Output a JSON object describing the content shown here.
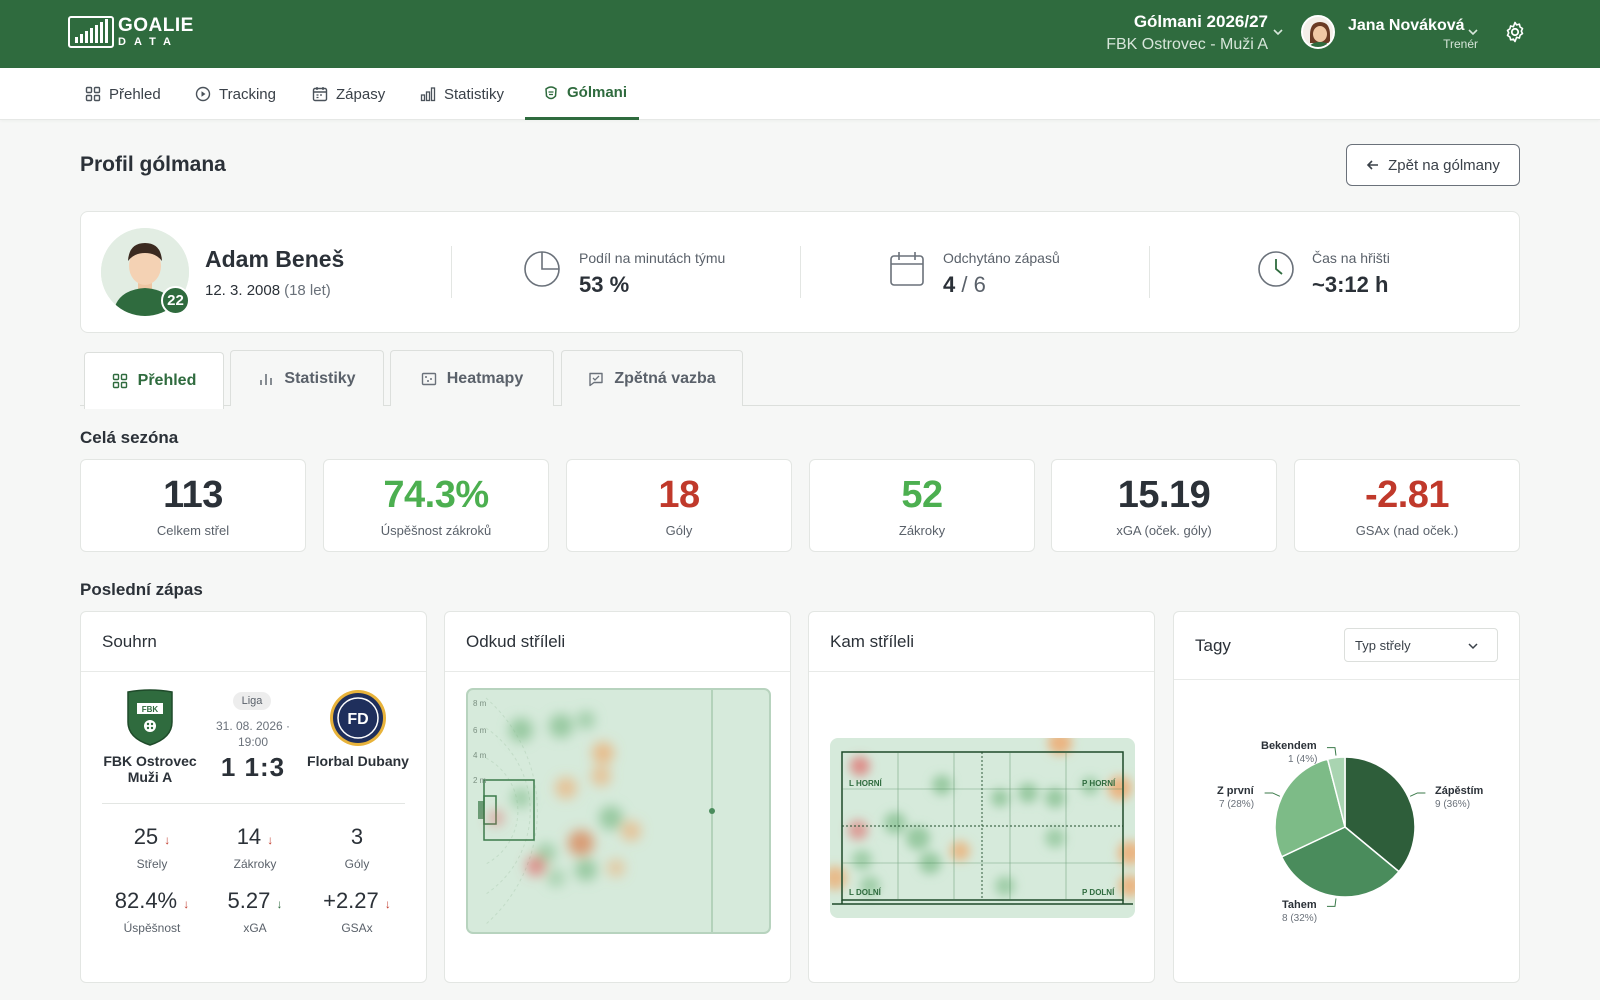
{
  "app": {
    "logo_line1": "GOALIE",
    "logo_line2": "DATA",
    "season_title": "Gólmani 2026/27",
    "season_team": "FBK Ostrovec - Muži A",
    "user_name": "Jana Nováková",
    "user_role": "Trenér"
  },
  "nav": {
    "items": [
      {
        "label": "Přehled",
        "icon": "grid-icon"
      },
      {
        "label": "Tracking",
        "icon": "play-icon"
      },
      {
        "label": "Zápasy",
        "icon": "calendar-icon"
      },
      {
        "label": "Statistiky",
        "icon": "bar-chart-icon"
      },
      {
        "label": "Gólmani",
        "icon": "goalie-mask-icon",
        "active": true
      }
    ]
  },
  "page": {
    "title": "Profil gólmana",
    "back_label": "Zpět na gólmany"
  },
  "profile": {
    "name": "Adam Beneš",
    "dob": "12. 3. 2008",
    "age": "(18 let)",
    "number": "22",
    "stats": [
      {
        "label": "Podíl na minutách týmu",
        "value": "53 %",
        "icon": "pie-icon"
      },
      {
        "label": "Odchytáno zápasů",
        "value": "4",
        "value_total": "6",
        "icon": "calendar-icon"
      },
      {
        "label": "Čas na hřišti",
        "value": "~3:12 h",
        "icon": "clock-icon"
      }
    ]
  },
  "tabs": [
    {
      "label": "Přehled",
      "icon": "grid-icon",
      "active": true
    },
    {
      "label": "Statistiky",
      "icon": "bar-chart-icon"
    },
    {
      "label": "Heatmapy",
      "icon": "heatmap-icon"
    },
    {
      "label": "Zpětná vazba",
      "icon": "feedback-icon"
    }
  ],
  "season": {
    "title": "Celá sezóna",
    "kpis": [
      {
        "value": "113",
        "label": "Celkem střel",
        "color": "#2b3138"
      },
      {
        "value": "74.3%",
        "label": "Úspěšnost zákroků",
        "color": "#4caf50"
      },
      {
        "value": "18",
        "label": "Góly",
        "color": "#c0392b"
      },
      {
        "value": "52",
        "label": "Zákroky",
        "color": "#4caf50"
      },
      {
        "value": "15.19",
        "label": "xGA (oček. góly)",
        "color": "#2b3138"
      },
      {
        "value": "-2.81",
        "label": "GSAx (nad oček.)",
        "color": "#c0392b"
      }
    ]
  },
  "last_match": {
    "title": "Poslední zápas",
    "summary": {
      "title": "Souhrn",
      "competition": "Liga",
      "date": "31. 08. 2026 · 19:00",
      "score": "1 1:3",
      "home_name": "FBK Ostrovec Muži A",
      "home_logo_text": "FBK",
      "away_name": "Florbal Dubany",
      "away_logo_text": "FD",
      "stats": [
        {
          "value": "25",
          "label": "Střely",
          "trend": "↓",
          "trend_good": false
        },
        {
          "value": "14",
          "label": "Zákroky",
          "trend": "↓",
          "trend_good": false
        },
        {
          "value": "3",
          "label": "Góly",
          "trend": "",
          "trend_good": false
        },
        {
          "value": "82.4%",
          "label": "Úspěšnost",
          "trend": "↓",
          "trend_good": false
        },
        {
          "value": "5.27",
          "label": "xGA",
          "trend": "↓",
          "trend_good": true
        },
        {
          "value": "+2.27",
          "label": "GSAx",
          "trend": "↓",
          "trend_good": false
        }
      ]
    },
    "shots_from": {
      "title": "Odkud stříleli",
      "distance_labels": [
        "8 m",
        "6 m",
        "4 m",
        "2 m"
      ]
    },
    "shots_to": {
      "title": "Kam stříleli",
      "zones": [
        "L HORNÍ",
        "P HORNÍ",
        "L DOLNÍ",
        "P DOLNÍ"
      ]
    },
    "tags": {
      "title": "Tagy",
      "filter": "Typ střely"
    }
  },
  "chart_data": {
    "type": "pie",
    "slices": [
      {
        "label": "Zápěstím",
        "value": 9,
        "pct": "(36%)",
        "color": "#2e5e3a"
      },
      {
        "label": "Tahem",
        "value": 8,
        "pct": "(32%)",
        "color": "#4a8c5c"
      },
      {
        "label": "Z první",
        "value": 7,
        "pct": "(28%)",
        "color": "#7dbb87"
      },
      {
        "label": "Bekendem",
        "value": 1,
        "pct": "(4%)",
        "color": "#a9d4b1"
      }
    ]
  }
}
